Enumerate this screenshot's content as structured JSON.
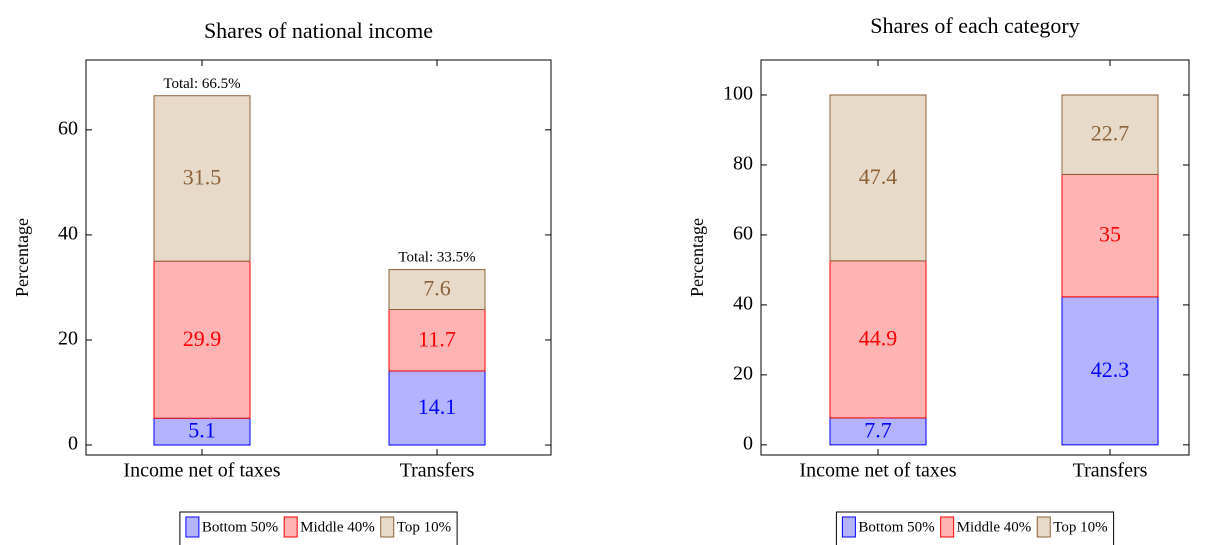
{
  "chart_data": [
    {
      "type": "stacked_bar",
      "title": "Shares of national income",
      "y_label": "Percentage",
      "categories": [
        "Income net of taxes",
        "Transfers"
      ],
      "series": [
        {
          "name": "Bottom 50%",
          "color": "#b3b3ff",
          "edge_color": "#0000ff",
          "values": [
            5.1,
            14.1
          ]
        },
        {
          "name": "Middle 40%",
          "color": "#ffb3b3",
          "edge_color": "#ff0000",
          "values": [
            29.9,
            11.7
          ]
        },
        {
          "name": "Top 10%",
          "color": "#e8dac8",
          "edge_color": "#8b6239",
          "values": [
            31.5,
            7.6
          ]
        }
      ],
      "totals": [
        66.5,
        33.5
      ],
      "total_labels": [
        "Total: 66.5%",
        "Total: 33.5%"
      ],
      "ylim": [
        -1.9,
        73.3
      ],
      "yticks": [
        0,
        20,
        40,
        60
      ],
      "legend": "below"
    },
    {
      "type": "stacked_bar",
      "title": "Shares of each category",
      "y_label": "Percentage",
      "categories": [
        "Income net of taxes",
        "Transfers"
      ],
      "series": [
        {
          "name": "Bottom 50%",
          "color": "#b3b3ff",
          "edge_color": "#0000ff",
          "values": [
            7.7,
            42.3
          ]
        },
        {
          "name": "Middle 40%",
          "color": "#ffb3b3",
          "edge_color": "#ff0000",
          "values": [
            44.9,
            35
          ]
        },
        {
          "name": "Top 10%",
          "color": "#e8dac8",
          "edge_color": "#8b6239",
          "values": [
            47.4,
            22.7
          ]
        }
      ],
      "ylim": [
        -2.9,
        110
      ],
      "yticks": [
        0,
        20,
        40,
        60,
        80,
        100
      ],
      "legend": "below"
    }
  ]
}
